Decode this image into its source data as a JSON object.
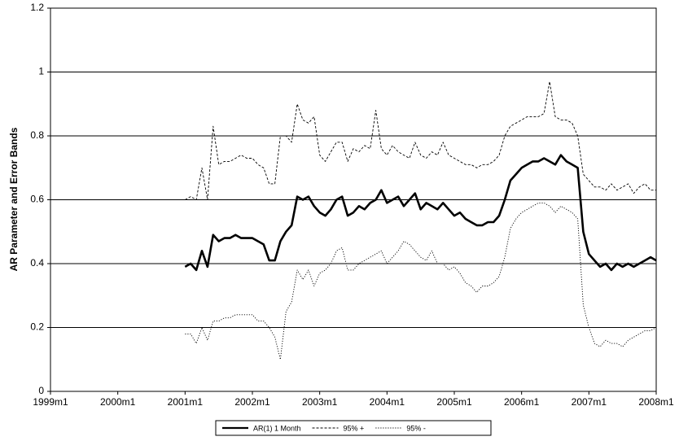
{
  "chart_data": {
    "type": "line",
    "y_label": "AR Parameter and Error Bands",
    "x": [
      "2001m1",
      "2001m2",
      "2001m3",
      "2001m4",
      "2001m5",
      "2001m6",
      "2001m7",
      "2001m8",
      "2001m9",
      "2001m10",
      "2001m11",
      "2001m12",
      "2002m1",
      "2002m2",
      "2002m3",
      "2002m4",
      "2002m5",
      "2002m6",
      "2002m7",
      "2002m8",
      "2002m9",
      "2002m10",
      "2002m11",
      "2002m12",
      "2003m1",
      "2003m2",
      "2003m3",
      "2003m4",
      "2003m5",
      "2003m6",
      "2003m7",
      "2003m8",
      "2003m9",
      "2003m10",
      "2003m11",
      "2003m12",
      "2004m1",
      "2004m2",
      "2004m3",
      "2004m4",
      "2004m5",
      "2004m6",
      "2004m7",
      "2004m8",
      "2004m9",
      "2004m10",
      "2004m11",
      "2004m12",
      "2005m1",
      "2005m2",
      "2005m3",
      "2005m4",
      "2005m5",
      "2005m6",
      "2005m7",
      "2005m8",
      "2005m9",
      "2005m10",
      "2005m11",
      "2005m12",
      "2006m1",
      "2006m2",
      "2006m3",
      "2006m4",
      "2006m5",
      "2006m6",
      "2006m7",
      "2006m8",
      "2006m9",
      "2006m10",
      "2006m11",
      "2006m12",
      "2007m1",
      "2007m2",
      "2007m3",
      "2007m4",
      "2007m5",
      "2007m6",
      "2007m7",
      "2007m8",
      "2007m9",
      "2007m10",
      "2007m11",
      "2007m12",
      "2008m1"
    ],
    "series": [
      {
        "name": "AR(1) 1 Month",
        "color": "#000000",
        "style": "solid",
        "values": [
          0.39,
          0.4,
          0.38,
          0.44,
          0.39,
          0.49,
          0.47,
          0.48,
          0.48,
          0.49,
          0.48,
          0.48,
          0.48,
          0.47,
          0.46,
          0.41,
          0.41,
          0.47,
          0.5,
          0.52,
          0.61,
          0.6,
          0.61,
          0.58,
          0.56,
          0.55,
          0.57,
          0.6,
          0.61,
          0.55,
          0.56,
          0.58,
          0.57,
          0.59,
          0.6,
          0.63,
          0.59,
          0.6,
          0.61,
          0.58,
          0.6,
          0.62,
          0.57,
          0.59,
          0.58,
          0.57,
          0.59,
          0.57,
          0.55,
          0.56,
          0.54,
          0.53,
          0.52,
          0.52,
          0.53,
          0.53,
          0.55,
          0.6,
          0.66,
          0.68,
          0.7,
          0.71,
          0.72,
          0.72,
          0.73,
          0.72,
          0.71,
          0.74,
          0.72,
          0.71,
          0.7,
          0.5,
          0.43,
          0.41,
          0.39,
          0.4,
          0.38,
          0.4,
          0.39,
          0.4,
          0.39,
          0.4,
          0.41,
          0.42,
          0.41
        ]
      },
      {
        "name": "95% +",
        "color": "#000000",
        "style": "dashed",
        "values": [
          0.6,
          0.61,
          0.6,
          0.7,
          0.6,
          0.83,
          0.71,
          0.72,
          0.72,
          0.73,
          0.74,
          0.73,
          0.73,
          0.71,
          0.7,
          0.65,
          0.65,
          0.8,
          0.8,
          0.78,
          0.9,
          0.85,
          0.84,
          0.86,
          0.74,
          0.72,
          0.75,
          0.78,
          0.78,
          0.72,
          0.76,
          0.75,
          0.77,
          0.76,
          0.88,
          0.76,
          0.74,
          0.77,
          0.75,
          0.74,
          0.73,
          0.78,
          0.74,
          0.73,
          0.75,
          0.74,
          0.78,
          0.74,
          0.73,
          0.72,
          0.71,
          0.71,
          0.7,
          0.71,
          0.71,
          0.72,
          0.74,
          0.8,
          0.83,
          0.84,
          0.85,
          0.86,
          0.86,
          0.86,
          0.87,
          0.97,
          0.86,
          0.85,
          0.85,
          0.84,
          0.8,
          0.68,
          0.66,
          0.64,
          0.64,
          0.63,
          0.65,
          0.63,
          0.64,
          0.65,
          0.62,
          0.64,
          0.65,
          0.63,
          0.63
        ]
      },
      {
        "name": "95% -",
        "color": "#000000",
        "style": "dotted",
        "values": [
          0.18,
          0.18,
          0.15,
          0.2,
          0.16,
          0.22,
          0.22,
          0.23,
          0.23,
          0.24,
          0.24,
          0.24,
          0.24,
          0.22,
          0.22,
          0.2,
          0.17,
          0.1,
          0.25,
          0.28,
          0.38,
          0.35,
          0.38,
          0.33,
          0.37,
          0.38,
          0.4,
          0.44,
          0.45,
          0.38,
          0.38,
          0.4,
          0.41,
          0.42,
          0.43,
          0.44,
          0.4,
          0.42,
          0.44,
          0.47,
          0.46,
          0.44,
          0.42,
          0.41,
          0.44,
          0.4,
          0.4,
          0.38,
          0.39,
          0.37,
          0.34,
          0.33,
          0.31,
          0.33,
          0.33,
          0.34,
          0.36,
          0.42,
          0.51,
          0.54,
          0.56,
          0.57,
          0.58,
          0.59,
          0.59,
          0.58,
          0.56,
          0.58,
          0.57,
          0.56,
          0.54,
          0.27,
          0.2,
          0.15,
          0.14,
          0.16,
          0.15,
          0.15,
          0.14,
          0.16,
          0.17,
          0.18,
          0.19,
          0.19,
          0.2
        ]
      }
    ],
    "xlim": [
      1999,
      2008
    ],
    "xticks": [
      {
        "value": 1999,
        "label": "1999m1"
      },
      {
        "value": 2000,
        "label": "2000m1"
      },
      {
        "value": 2001,
        "label": "2001m1"
      },
      {
        "value": 2002,
        "label": "2002m1"
      },
      {
        "value": 2003,
        "label": "2003m1"
      },
      {
        "value": 2004,
        "label": "2004m1"
      },
      {
        "value": 2005,
        "label": "2005m1"
      },
      {
        "value": 2006,
        "label": "2006m1"
      },
      {
        "value": 2007,
        "label": "2007m1"
      },
      {
        "value": 2008,
        "label": "2008m1"
      }
    ],
    "ylim": [
      0,
      1.2
    ],
    "yticks": [
      0,
      0.2,
      0.4,
      0.6,
      0.8,
      1,
      1.2
    ],
    "grid": true,
    "legend": "bottom"
  }
}
